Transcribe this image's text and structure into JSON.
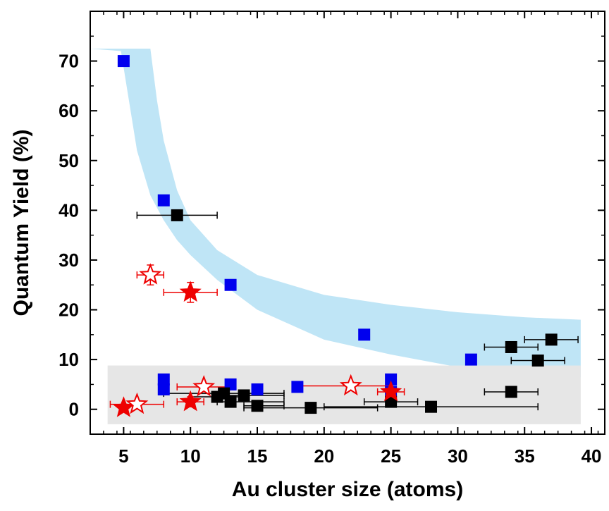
{
  "chart_data": {
    "type": "scatter",
    "title": "",
    "xlabel": "Au cluster size (atoms)",
    "ylabel": "Quantum Yield (%)",
    "xlim": [
      2.5,
      41
    ],
    "ylim": [
      -5,
      80
    ],
    "xticks": [
      5,
      10,
      15,
      20,
      25,
      30,
      35,
      40
    ],
    "yticks": [
      0,
      10,
      20,
      30,
      40,
      50,
      60,
      70
    ],
    "grid": false,
    "legend": "none",
    "colors": {
      "blue_square": "#0000ee",
      "black_square": "#000000",
      "red_star": "#ee0000",
      "band_blue": "#bfe5f6",
      "band_gray": "#e6e6e6"
    },
    "shaded_regions": [
      {
        "color_key": "band_blue",
        "upper": [
          [
            2.5,
            72.5
          ],
          [
            7,
            72.5
          ],
          [
            7.5,
            62
          ],
          [
            8,
            54
          ],
          [
            9,
            44
          ],
          [
            10,
            38
          ],
          [
            12,
            32
          ],
          [
            15,
            27
          ],
          [
            20,
            23
          ],
          [
            25,
            21
          ],
          [
            30,
            19.5
          ],
          [
            35,
            18.5
          ],
          [
            39.2,
            18
          ]
        ],
        "lower": [
          [
            4.8,
            72
          ],
          [
            6,
            52
          ],
          [
            7,
            43
          ],
          [
            8,
            38
          ],
          [
            9,
            34
          ],
          [
            10,
            31
          ],
          [
            12,
            26
          ],
          [
            15,
            20
          ],
          [
            20,
            14
          ],
          [
            25,
            11
          ],
          [
            30,
            8.5
          ],
          [
            35,
            7
          ],
          [
            39.2,
            6.4
          ]
        ]
      },
      {
        "color_key": "band_gray",
        "x_range": [
          3.8,
          39.2
        ],
        "y_range": [
          -3,
          8.8
        ]
      }
    ],
    "series": [
      {
        "marker": "square",
        "color_key": "blue_square",
        "points": [
          {
            "x": 5,
            "y": 70
          },
          {
            "x": 8,
            "y": 42
          },
          {
            "x": 13,
            "y": 25
          },
          {
            "x": 23,
            "y": 15
          },
          {
            "x": 31,
            "y": 10
          },
          {
            "x": 8,
            "y": 6
          },
          {
            "x": 8,
            "y": 4
          },
          {
            "x": 13,
            "y": 5
          },
          {
            "x": 15,
            "y": 4
          },
          {
            "x": 18,
            "y": 4.5
          },
          {
            "x": 25,
            "y": 6
          },
          {
            "x": 25,
            "y": 3.5
          }
        ]
      },
      {
        "marker": "square",
        "color_key": "black_square",
        "points": [
          {
            "x": 9,
            "y": 39,
            "xerr": [
              6,
              12
            ]
          },
          {
            "x": 12,
            "y": 2.5,
            "xerr": [
              10,
              14
            ]
          },
          {
            "x": 12.5,
            "y": 3.2,
            "xerr": [
              8,
              17
            ]
          },
          {
            "x": 13,
            "y": 1.5,
            "xerr": [
              12,
              17
            ]
          },
          {
            "x": 14,
            "y": 2.8,
            "xerr": [
              12,
              17
            ]
          },
          {
            "x": 15,
            "y": 0.7,
            "xerr": [
              14,
              17
            ]
          },
          {
            "x": 19,
            "y": 0.3,
            "xerr": [
              14,
              24
            ]
          },
          {
            "x": 25,
            "y": 1.5,
            "xerr": [
              23,
              27
            ]
          },
          {
            "x": 28,
            "y": 0.5,
            "xerr": [
              20,
              36
            ]
          },
          {
            "x": 34,
            "y": 12.5,
            "xerr": [
              32,
              36
            ]
          },
          {
            "x": 34,
            "y": 3.5,
            "xerr": [
              32,
              36
            ]
          },
          {
            "x": 36,
            "y": 9.8,
            "xerr": [
              34,
              38
            ]
          },
          {
            "x": 37,
            "y": 14,
            "xerr": [
              35,
              39
            ]
          }
        ]
      },
      {
        "marker": "star-filled",
        "color_key": "red_star",
        "points": [
          {
            "x": 10,
            "y": 23.5,
            "xerr": [
              8,
              12
            ],
            "yerr": [
              21.5,
              25.5
            ]
          },
          {
            "x": 10,
            "y": 1.5,
            "xerr": [
              9,
              11
            ],
            "yerr": [
              0.5,
              2.5
            ]
          },
          {
            "x": 5,
            "y": 0.3
          },
          {
            "x": 25,
            "y": 3.5,
            "xerr": [
              24,
              26
            ],
            "yerr": [
              2.5,
              4.5
            ]
          }
        ]
      },
      {
        "marker": "star-open",
        "color_key": "red_star",
        "points": [
          {
            "x": 7,
            "y": 27,
            "xerr": [
              6,
              8
            ],
            "yerr": [
              25,
              29
            ]
          },
          {
            "x": 11,
            "y": 4.5,
            "xerr": [
              9,
              13
            ]
          },
          {
            "x": 6,
            "y": 1,
            "xerr": [
              4,
              8
            ]
          },
          {
            "x": 22,
            "y": 4.7,
            "xerr": [
              18,
              25
            ]
          }
        ]
      }
    ]
  }
}
